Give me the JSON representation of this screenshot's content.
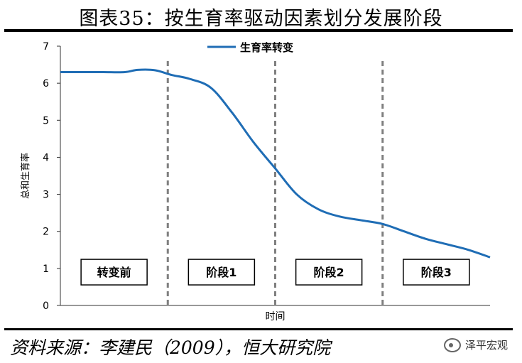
{
  "figure": {
    "title": "图表35：按生育率驱动因素划分发展阶段",
    "source": "资料来源：李建民（2009），恒大研究院",
    "watermark": "泽平宏观",
    "watermark_icon": "wechat-logo-icon"
  },
  "chart_data": {
    "type": "line",
    "title": "",
    "xlabel": "时间",
    "ylabel": "总和生育率",
    "ylim": [
      0,
      7
    ],
    "yticks": [
      0,
      1,
      2,
      3,
      4,
      5,
      6,
      7
    ],
    "xlim": [
      0,
      100
    ],
    "legend": {
      "position": "top-center",
      "label": "生育率转变"
    },
    "line_color": "#1f6db5",
    "series": [
      {
        "name": "生育率转变",
        "x": [
          0,
          5,
          10,
          15,
          18,
          22,
          26,
          30,
          35,
          40,
          45,
          50,
          55,
          60,
          65,
          70,
          75,
          80,
          85,
          90,
          95,
          100
        ],
        "y": [
          6.3,
          6.3,
          6.3,
          6.3,
          6.36,
          6.35,
          6.22,
          6.12,
          5.88,
          5.2,
          4.4,
          3.7,
          3.0,
          2.6,
          2.4,
          2.3,
          2.2,
          2.0,
          1.8,
          1.65,
          1.5,
          1.3
        ]
      }
    ],
    "stage_boundaries": [
      25,
      50,
      75
    ],
    "stages": [
      {
        "label": "转变前",
        "center": 12.5
      },
      {
        "label": "阶段1",
        "center": 37.5
      },
      {
        "label": "阶段2",
        "center": 62.5
      },
      {
        "label": "阶段3",
        "center": 87.5
      }
    ],
    "stage_box_y": 0.9,
    "grid": false
  }
}
